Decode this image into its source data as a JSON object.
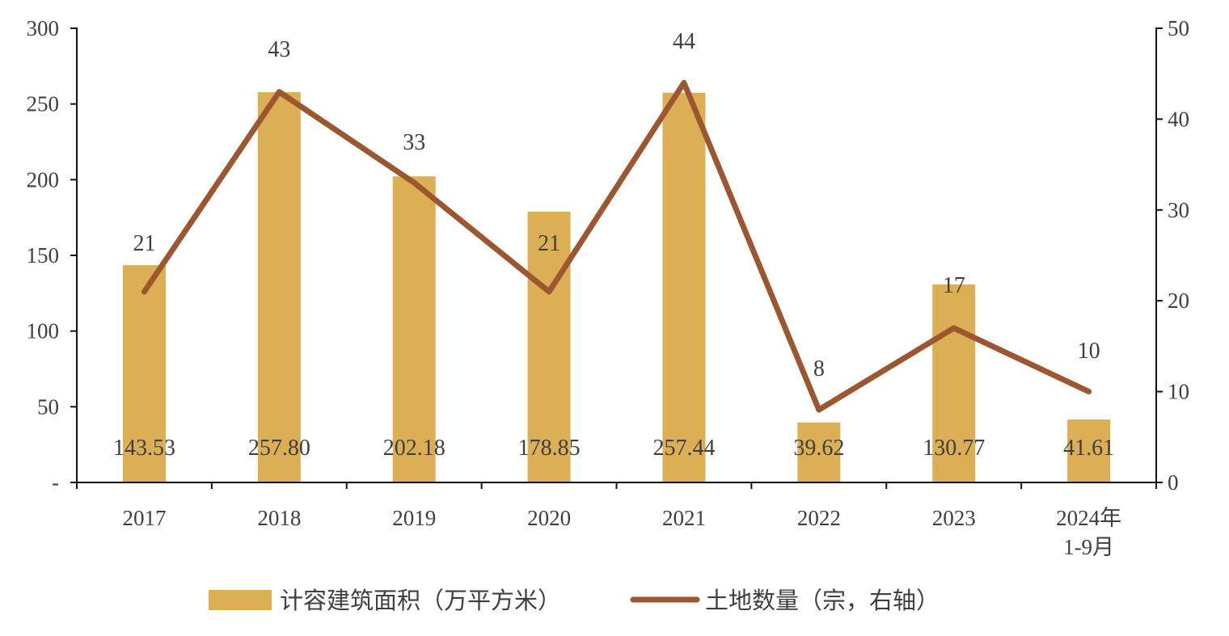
{
  "chart_data": {
    "type": "bar",
    "categories": [
      "2017",
      "2018",
      "2019",
      "2020",
      "2021",
      "2022",
      "2023",
      "2024年\n1-9月"
    ],
    "series": [
      {
        "name": "计容建筑面积（万平方米）",
        "type": "bar",
        "axis": "left",
        "values": [
          143.53,
          257.8,
          202.18,
          178.85,
          257.44,
          39.62,
          130.77,
          41.61
        ],
        "labels": [
          "143.53",
          "257.80",
          "202.18",
          "178.85",
          "257.44",
          "39.62",
          "130.77",
          "41.61"
        ],
        "color": "#dcaf55"
      },
      {
        "name": "土地数量（宗，右轴）",
        "type": "line",
        "axis": "right",
        "values": [
          21,
          43,
          33,
          21,
          44,
          8,
          17,
          10
        ],
        "labels": [
          "21",
          "43",
          "33",
          "21",
          "44",
          "8",
          "17",
          "10"
        ],
        "color": "#9c5730"
      }
    ],
    "y_left": {
      "ylim": [
        0,
        300
      ],
      "ticks": [
        0,
        50,
        100,
        150,
        200,
        250,
        300
      ],
      "tick_labels": [
        "-",
        "50",
        "100",
        "150",
        "200",
        "250",
        "300"
      ]
    },
    "y_right": {
      "ylim": [
        0,
        50
      ],
      "ticks": [
        0,
        10,
        20,
        30,
        40,
        50
      ],
      "tick_labels": [
        "0",
        "10",
        "20",
        "30",
        "40",
        "50"
      ]
    },
    "title": "",
    "xlabel": "",
    "ylabel": "",
    "grid": false,
    "legend_position": "bottom"
  }
}
